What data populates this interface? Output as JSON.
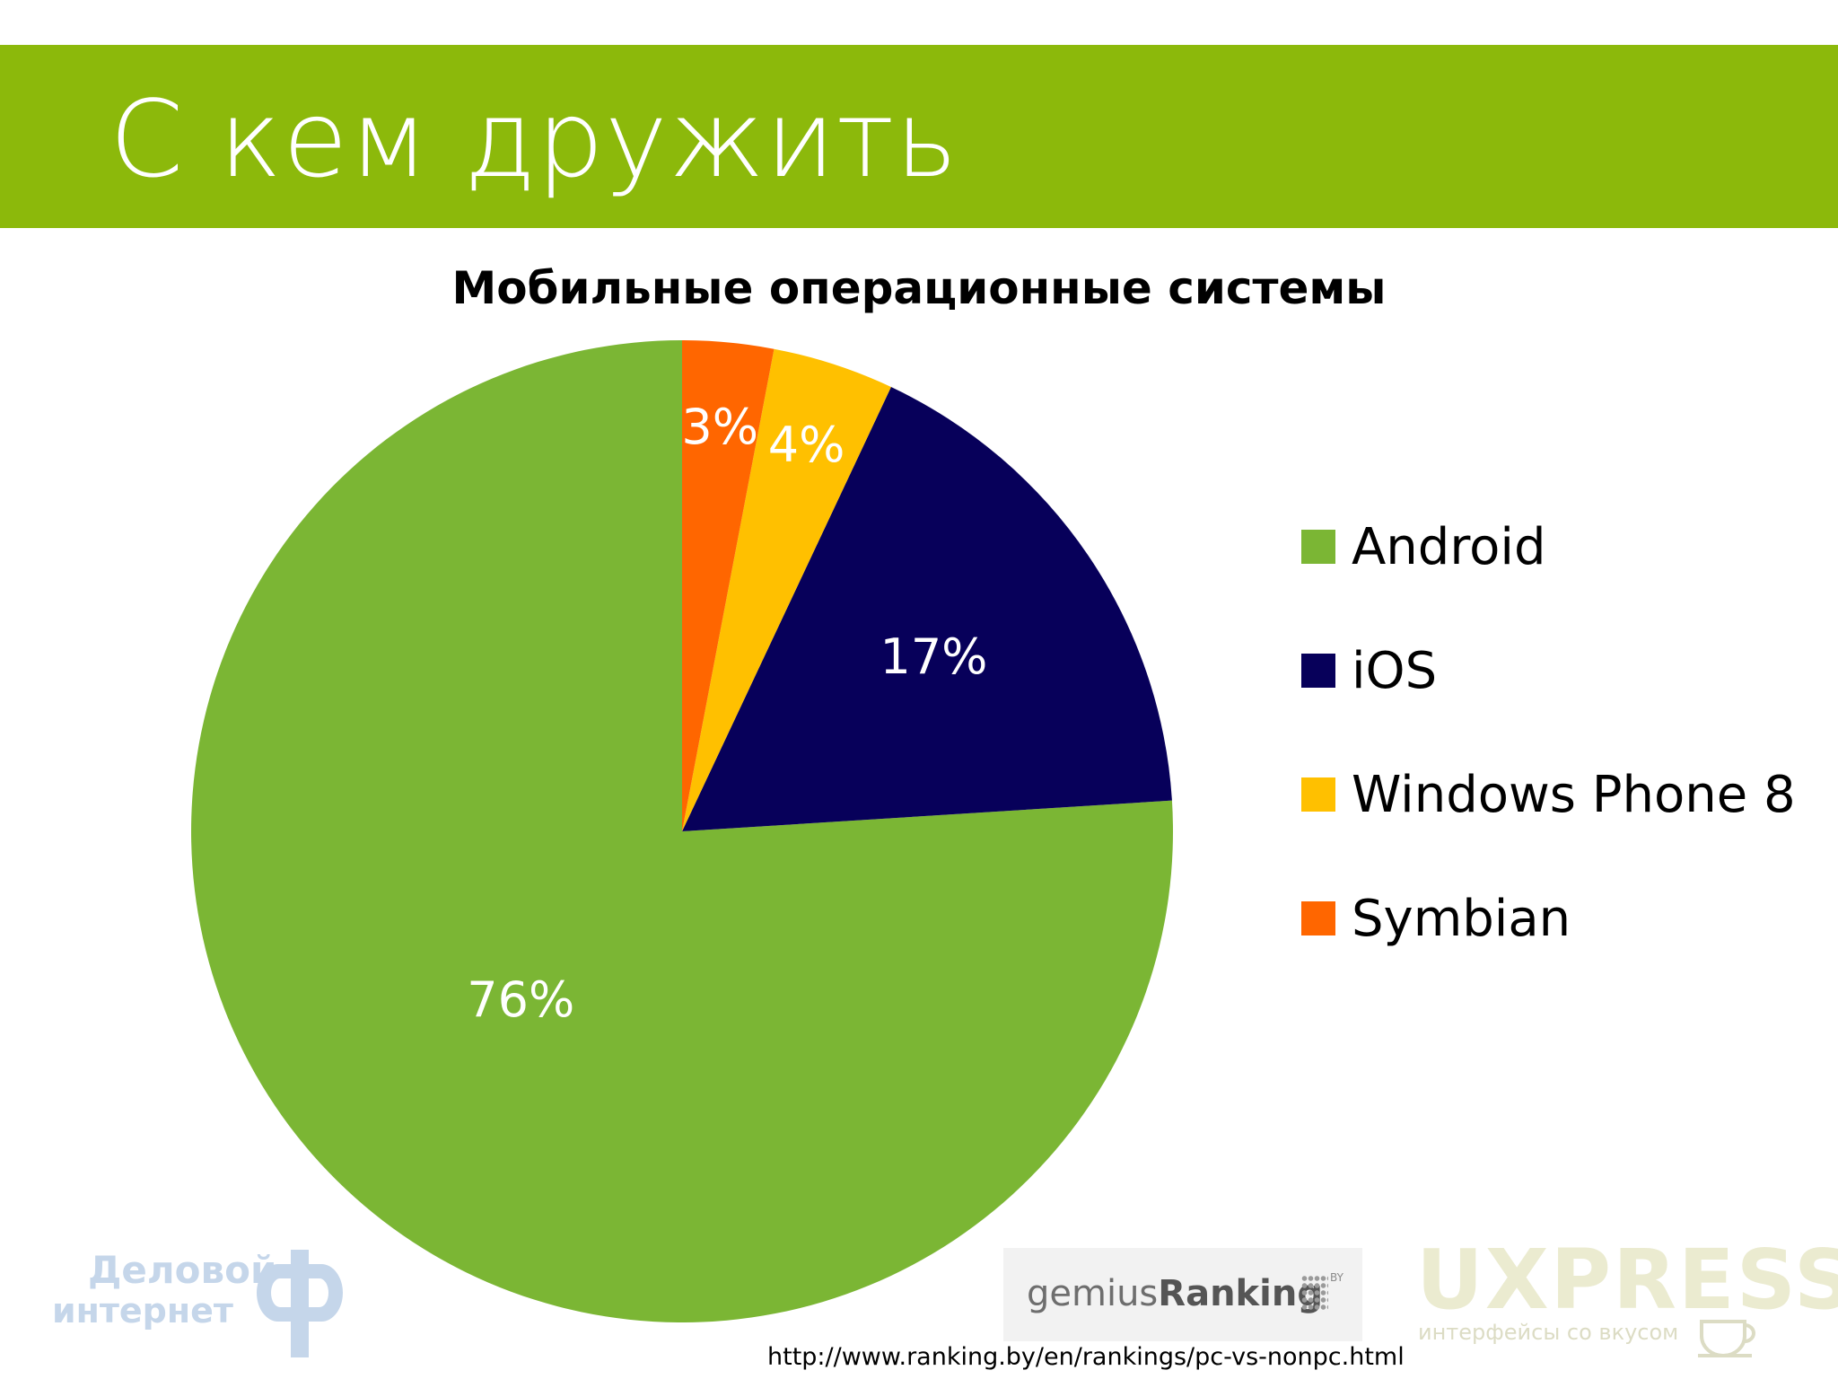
{
  "slide": {
    "title": "С кем дружить"
  },
  "chart_data": {
    "type": "pie",
    "title": "Мобильные операционные системы",
    "legend_position": "right",
    "slices": [
      {
        "name": "Android",
        "value": 76,
        "label": "76%",
        "color": "#7bb634"
      },
      {
        "name": "iOS",
        "value": 17,
        "label": "17%",
        "color": "#07005a"
      },
      {
        "name": "Windows Phone 8",
        "value": 4,
        "label": "4%",
        "color": "#ffc000"
      },
      {
        "name": "Symbian",
        "value": 3,
        "label": "3%",
        "color": "#ff6600"
      }
    ]
  },
  "logos": {
    "delovoy_line1": "Деловой",
    "delovoy_line2": "интернет",
    "gemius_part1": "gemius",
    "gemius_part2": "Ranking",
    "gemius_suffix": "BY",
    "uxpresso_name": "UXPRESSO",
    "uxpresso_tagline": "интерфейсы со вкусом"
  },
  "source": {
    "url": "http://www.ranking.by/en/rankings/pc-vs-nonpc.html"
  },
  "colors": {
    "header_band": "#8cb90b",
    "background": "#ffffff"
  }
}
